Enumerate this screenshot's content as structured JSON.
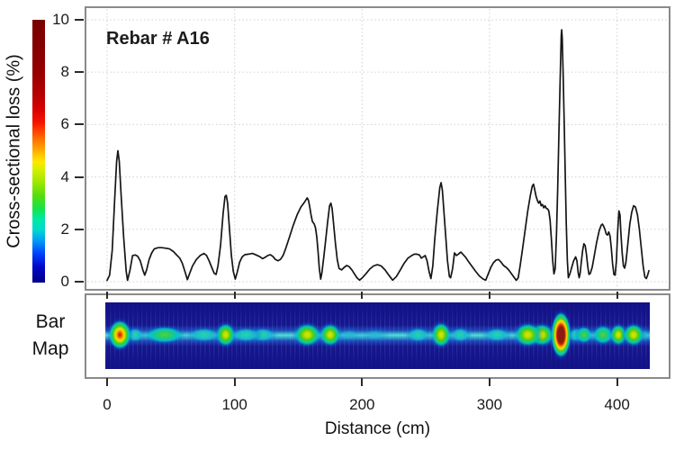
{
  "figure": {
    "annotation": "Rebar # A16",
    "bar_map_label": "Bar\nMap",
    "colors": {
      "line": "#151515",
      "grid": "#d9d9d9",
      "panel_border": "#8a8a8a",
      "tick": "#2a2a2a",
      "heatmap_background": "#131186",
      "hotspot_core_max": "#8c1a12",
      "text": "#1a1a1a"
    },
    "colorbar_stops": [
      [
        "0%",
        "#000084"
      ],
      [
        "6%",
        "#0008c8"
      ],
      [
        "11%",
        "#0040ff"
      ],
      [
        "16%",
        "#009cf4"
      ],
      [
        "20%",
        "#00d8d0"
      ],
      [
        "24%",
        "#00e8a8"
      ],
      [
        "28%",
        "#14e44c"
      ],
      [
        "33%",
        "#55dd0f"
      ],
      [
        "38%",
        "#9ae800"
      ],
      [
        "43%",
        "#d6ef00"
      ],
      [
        "46%",
        "#ffe800"
      ],
      [
        "50%",
        "#ffb000"
      ],
      [
        "54%",
        "#ff7800"
      ],
      [
        "58%",
        "#ff3c00"
      ],
      [
        "61%",
        "#f41400"
      ],
      [
        "66%",
        "#d80000"
      ],
      [
        "72%",
        "#b40000"
      ],
      [
        "80%",
        "#960000"
      ],
      [
        "90%",
        "#840000"
      ],
      [
        "100%",
        "#7a0000"
      ]
    ]
  },
  "chart_data": [
    {
      "type": "line",
      "title": "Rebar # A16",
      "xlabel": "Distance (cm)",
      "ylabel": "Cross-sectional loss (%)",
      "xlim": [
        -18,
        442
      ],
      "ylim": [
        0,
        10
      ],
      "x_ticks": [
        0,
        100,
        200,
        300,
        400
      ],
      "y_ticks": [
        0,
        2,
        4,
        6,
        8,
        10
      ],
      "grid": true,
      "legend": "none",
      "points": [
        [
          0,
          0.05
        ],
        [
          2,
          0.25
        ],
        [
          4,
          1.2
        ],
        [
          6,
          3.2
        ],
        [
          7.5,
          4.6
        ],
        [
          8.5,
          5.0
        ],
        [
          9.5,
          4.6
        ],
        [
          11,
          3.3
        ],
        [
          13,
          1.7
        ],
        [
          15,
          0.4
        ],
        [
          16,
          0.05
        ],
        [
          18,
          0.45
        ],
        [
          20,
          1.0
        ],
        [
          22,
          1.02
        ],
        [
          24,
          0.97
        ],
        [
          26,
          0.8
        ],
        [
          28,
          0.45
        ],
        [
          29.5,
          0.25
        ],
        [
          31,
          0.45
        ],
        [
          33,
          0.85
        ],
        [
          35,
          1.1
        ],
        [
          37,
          1.25
        ],
        [
          40,
          1.3
        ],
        [
          43,
          1.3
        ],
        [
          46,
          1.28
        ],
        [
          49,
          1.25
        ],
        [
          52,
          1.15
        ],
        [
          55,
          1.0
        ],
        [
          57,
          0.9
        ],
        [
          59,
          0.7
        ],
        [
          61,
          0.4
        ],
        [
          63,
          0.08
        ],
        [
          65,
          0.35
        ],
        [
          67,
          0.6
        ],
        [
          70,
          0.85
        ],
        [
          73,
          1.0
        ],
        [
          76,
          1.08
        ],
        [
          78,
          1.0
        ],
        [
          80,
          0.8
        ],
        [
          82,
          0.55
        ],
        [
          84,
          0.32
        ],
        [
          85.5,
          0.28
        ],
        [
          87,
          0.6
        ],
        [
          89,
          1.4
        ],
        [
          91,
          2.6
        ],
        [
          92.5,
          3.25
        ],
        [
          93.5,
          3.3
        ],
        [
          94.5,
          3.0
        ],
        [
          96,
          2.0
        ],
        [
          97.5,
          1.0
        ],
        [
          99,
          0.4
        ],
        [
          100.5,
          0.1
        ],
        [
          102,
          0.35
        ],
        [
          104,
          0.75
        ],
        [
          106,
          0.95
        ],
        [
          108,
          1.03
        ],
        [
          111,
          1.05
        ],
        [
          114,
          1.08
        ],
        [
          117,
          1.02
        ],
        [
          120,
          0.95
        ],
        [
          122,
          0.88
        ],
        [
          124,
          0.93
        ],
        [
          126,
          1.0
        ],
        [
          128,
          1.03
        ],
        [
          130,
          0.97
        ],
        [
          132,
          0.85
        ],
        [
          134,
          0.8
        ],
        [
          136,
          0.85
        ],
        [
          138,
          1.0
        ],
        [
          140,
          1.25
        ],
        [
          143,
          1.7
        ],
        [
          146,
          2.15
        ],
        [
          149,
          2.55
        ],
        [
          152,
          2.85
        ],
        [
          155,
          3.05
        ],
        [
          157,
          3.2
        ],
        [
          158,
          3.1
        ],
        [
          159,
          2.85
        ],
        [
          160,
          2.55
        ],
        [
          161,
          2.3
        ],
        [
          162.5,
          2.2
        ],
        [
          163.5,
          2.05
        ],
        [
          164.5,
          1.7
        ],
        [
          165.5,
          1.15
        ],
        [
          166.5,
          0.5
        ],
        [
          167.5,
          0.1
        ],
        [
          168.5,
          0.35
        ],
        [
          170,
          0.95
        ],
        [
          171.5,
          1.6
        ],
        [
          173,
          2.3
        ],
        [
          174.5,
          2.9
        ],
        [
          175.5,
          3.0
        ],
        [
          176.5,
          2.8
        ],
        [
          177.5,
          2.3
        ],
        [
          179,
          1.5
        ],
        [
          180.5,
          0.85
        ],
        [
          182,
          0.5
        ],
        [
          184,
          0.45
        ],
        [
          186,
          0.55
        ],
        [
          188,
          0.62
        ],
        [
          190,
          0.57
        ],
        [
          192,
          0.45
        ],
        [
          194,
          0.3
        ],
        [
          196,
          0.15
        ],
        [
          198,
          0.06
        ],
        [
          200,
          0.14
        ],
        [
          203,
          0.3
        ],
        [
          206,
          0.48
        ],
        [
          209,
          0.6
        ],
        [
          212,
          0.65
        ],
        [
          215,
          0.6
        ],
        [
          218,
          0.45
        ],
        [
          221,
          0.25
        ],
        [
          224,
          0.06
        ],
        [
          227,
          0.2
        ],
        [
          230,
          0.45
        ],
        [
          233,
          0.7
        ],
        [
          236,
          0.9
        ],
        [
          239,
          1.0
        ],
        [
          241,
          1.05
        ],
        [
          243,
          1.05
        ],
        [
          245,
          1.02
        ],
        [
          246.5,
          0.9
        ],
        [
          248,
          0.95
        ],
        [
          249.5,
          1.0
        ],
        [
          251,
          0.8
        ],
        [
          252.5,
          0.4
        ],
        [
          254,
          0.12
        ],
        [
          255.5,
          0.6
        ],
        [
          257,
          1.6
        ],
        [
          259,
          2.7
        ],
        [
          261,
          3.6
        ],
        [
          262,
          3.78
        ],
        [
          263,
          3.5
        ],
        [
          264,
          2.8
        ],
        [
          265.5,
          1.8
        ],
        [
          267,
          0.8
        ],
        [
          268.5,
          0.2
        ],
        [
          269.5,
          0.15
        ],
        [
          271,
          0.5
        ],
        [
          272.5,
          1.1
        ],
        [
          274,
          1.0
        ],
        [
          275.5,
          1.05
        ],
        [
          277.5,
          1.13
        ],
        [
          279,
          1.05
        ],
        [
          281,
          0.95
        ],
        [
          283,
          0.8
        ],
        [
          286,
          0.6
        ],
        [
          289,
          0.4
        ],
        [
          292,
          0.22
        ],
        [
          295,
          0.1
        ],
        [
          297,
          0.06
        ],
        [
          299,
          0.3
        ],
        [
          301,
          0.55
        ],
        [
          303,
          0.72
        ],
        [
          305,
          0.82
        ],
        [
          307,
          0.85
        ],
        [
          309,
          0.75
        ],
        [
          311,
          0.62
        ],
        [
          313,
          0.55
        ],
        [
          315,
          0.45
        ],
        [
          317,
          0.32
        ],
        [
          319,
          0.18
        ],
        [
          321,
          0.05
        ],
        [
          322.5,
          0.15
        ],
        [
          324,
          0.6
        ],
        [
          326,
          1.3
        ],
        [
          328,
          2.0
        ],
        [
          330,
          2.7
        ],
        [
          332,
          3.3
        ],
        [
          333.5,
          3.65
        ],
        [
          334.5,
          3.72
        ],
        [
          335.5,
          3.5
        ],
        [
          336.5,
          3.25
        ],
        [
          337.5,
          3.1
        ],
        [
          338.5,
          3.0
        ],
        [
          339.5,
          3.08
        ],
        [
          340.5,
          2.9
        ],
        [
          341.5,
          2.95
        ],
        [
          342.5,
          2.82
        ],
        [
          343.5,
          2.9
        ],
        [
          344.5,
          2.8
        ],
        [
          345.5,
          2.78
        ],
        [
          346.5,
          2.7
        ],
        [
          347.5,
          2.35
        ],
        [
          348.5,
          1.6
        ],
        [
          349.5,
          0.8
        ],
        [
          350.5,
          0.3
        ],
        [
          351.5,
          0.5
        ],
        [
          352.5,
          1.8
        ],
        [
          353.5,
          3.6
        ],
        [
          354.5,
          5.8
        ],
        [
          355.5,
          8.0
        ],
        [
          356.2,
          9.4
        ],
        [
          356.6,
          9.62
        ],
        [
          357,
          9.3
        ],
        [
          357.8,
          7.8
        ],
        [
          358.6,
          5.9
        ],
        [
          359.4,
          4.0
        ],
        [
          360.2,
          2.2
        ],
        [
          361,
          0.8
        ],
        [
          361.8,
          0.15
        ],
        [
          363,
          0.3
        ],
        [
          364.5,
          0.55
        ],
        [
          366,
          0.8
        ],
        [
          367.5,
          0.95
        ],
        [
          368.5,
          0.8
        ],
        [
          369.5,
          0.35
        ],
        [
          370.3,
          0.15
        ],
        [
          371,
          0.3
        ],
        [
          372,
          0.75
        ],
        [
          373,
          1.2
        ],
        [
          374,
          1.45
        ],
        [
          375,
          1.38
        ],
        [
          376,
          1.05
        ],
        [
          377,
          0.6
        ],
        [
          378,
          0.28
        ],
        [
          379,
          0.32
        ],
        [
          380.5,
          0.55
        ],
        [
          382,
          0.95
        ],
        [
          384,
          1.5
        ],
        [
          386,
          1.95
        ],
        [
          387.5,
          2.15
        ],
        [
          388.5,
          2.2
        ],
        [
          389.5,
          2.12
        ],
        [
          390.5,
          2.0
        ],
        [
          391.5,
          1.82
        ],
        [
          392.5,
          1.78
        ],
        [
          393.5,
          1.9
        ],
        [
          394.5,
          1.75
        ],
        [
          395.5,
          1.3
        ],
        [
          396.5,
          0.7
        ],
        [
          397.5,
          0.28
        ],
        [
          398.5,
          0.25
        ],
        [
          399.5,
          0.8
        ],
        [
          400.5,
          1.9
        ],
        [
          401.5,
          2.7
        ],
        [
          402.3,
          2.55
        ],
        [
          403,
          1.9
        ],
        [
          404,
          1.1
        ],
        [
          405,
          0.6
        ],
        [
          406,
          0.52
        ],
        [
          407,
          0.75
        ],
        [
          408.5,
          1.45
        ],
        [
          410,
          2.2
        ],
        [
          411.5,
          2.65
        ],
        [
          413,
          2.9
        ],
        [
          414.5,
          2.85
        ],
        [
          416,
          2.55
        ],
        [
          417.5,
          2.0
        ],
        [
          419,
          1.3
        ],
        [
          420.5,
          0.6
        ],
        [
          421.8,
          0.18
        ],
        [
          423,
          0.12
        ],
        [
          424,
          0.25
        ],
        [
          425,
          0.42
        ]
      ]
    },
    {
      "type": "heatmap",
      "name": "Bar Map",
      "orientation": "horizontal-strip",
      "value_scale_pct": [
        0,
        10
      ],
      "hotspots": [
        {
          "cm": 10,
          "hw": 5.5,
          "v": 5.0
        },
        {
          "cm": 22,
          "hw": 4,
          "v": 1.0
        },
        {
          "cm": 45,
          "hw": 11,
          "v": 1.5
        },
        {
          "cm": 76,
          "hw": 9,
          "v": 0.9
        },
        {
          "cm": 93,
          "hw": 4.5,
          "v": 3.3
        },
        {
          "cm": 109,
          "hw": 8,
          "v": 1.0
        },
        {
          "cm": 122,
          "hw": 7,
          "v": 0.9
        },
        {
          "cm": 157,
          "hw": 7,
          "v": 3.2
        },
        {
          "cm": 175,
          "hw": 5,
          "v": 3.0
        },
        {
          "cm": 190,
          "hw": 6,
          "v": 0.6
        },
        {
          "cm": 210,
          "hw": 7,
          "v": 0.6
        },
        {
          "cm": 244,
          "hw": 6,
          "v": 1.1
        },
        {
          "cm": 262,
          "hw": 4.5,
          "v": 3.8
        },
        {
          "cm": 277,
          "hw": 5,
          "v": 1.1
        },
        {
          "cm": 306,
          "hw": 7,
          "v": 0.8
        },
        {
          "cm": 330,
          "hw": 7,
          "v": 3.3
        },
        {
          "cm": 341,
          "hw": 6,
          "v": 2.9
        },
        {
          "cm": 356,
          "hw": 4.5,
          "v": 9.6
        },
        {
          "cm": 368,
          "hw": 3.5,
          "v": 1.0
        },
        {
          "cm": 374,
          "hw": 3.5,
          "v": 1.5
        },
        {
          "cm": 389,
          "hw": 5,
          "v": 2.2
        },
        {
          "cm": 401,
          "hw": 3.5,
          "v": 2.7
        },
        {
          "cm": 413,
          "hw": 5,
          "v": 2.9
        },
        {
          "cm": 421,
          "hw": 3,
          "v": 0.5
        }
      ]
    }
  ]
}
